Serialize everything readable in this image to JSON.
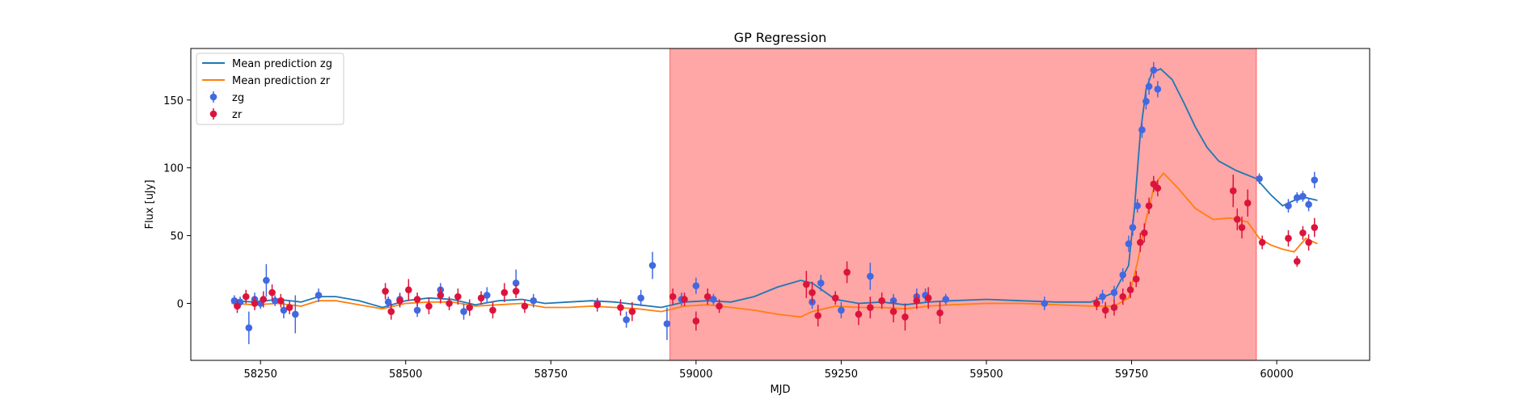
{
  "chart_data": {
    "type": "scatter",
    "title": "GP Regression",
    "xlabel": "MJD",
    "ylabel": "Flux [uJy]",
    "xlim": [
      58130,
      60160
    ],
    "ylim": [
      -42,
      188
    ],
    "xticks": [
      58250,
      58500,
      58750,
      59000,
      59250,
      59500,
      59750,
      60000
    ],
    "yticks": [
      0,
      50,
      100,
      150
    ],
    "grid": false,
    "legend_position": "top-left",
    "shaded_region": {
      "x0": 58955,
      "x1": 59965,
      "color": "#ff0000",
      "alpha": 0.35
    },
    "series": [
      {
        "name": "Mean prediction zg",
        "kind": "line",
        "color": "#1f77b4",
        "x": [
          58200,
          58240,
          58280,
          58320,
          58350,
          58380,
          58420,
          58460,
          58500,
          58540,
          58580,
          58620,
          58660,
          58700,
          58740,
          58780,
          58820,
          58860,
          58900,
          58940,
          58980,
          59020,
          59060,
          59100,
          59140,
          59180,
          59200,
          59240,
          59280,
          59320,
          59360,
          59400,
          59440,
          59500,
          59560,
          59620,
          59680,
          59720,
          59745,
          59755,
          59765,
          59775,
          59785,
          59800,
          59820,
          59840,
          59860,
          59880,
          59900,
          59930,
          59965,
          59990,
          60010,
          60030,
          60050,
          60070
        ],
        "y": [
          2,
          1,
          3,
          1,
          5,
          5,
          2,
          -3,
          2,
          4,
          3,
          -1,
          2,
          3,
          0,
          1,
          2,
          1,
          -1,
          -3,
          1,
          2,
          1,
          5,
          12,
          17,
          15,
          3,
          0,
          1,
          -1,
          1,
          2,
          3,
          2,
          1,
          1,
          8,
          28,
          70,
          125,
          158,
          170,
          173,
          165,
          148,
          130,
          115,
          105,
          98,
          92,
          80,
          72,
          76,
          78,
          76
        ]
      },
      {
        "name": "Mean prediction zr",
        "kind": "line",
        "color": "#ff7f0e",
        "x": [
          58200,
          58240,
          58280,
          58320,
          58350,
          58380,
          58420,
          58460,
          58500,
          58540,
          58580,
          58620,
          58660,
          58700,
          58740,
          58780,
          58820,
          58860,
          58900,
          58940,
          58980,
          59020,
          59060,
          59100,
          59140,
          59180,
          59200,
          59240,
          59280,
          59320,
          59360,
          59400,
          59440,
          59500,
          59560,
          59620,
          59680,
          59720,
          59745,
          59760,
          59775,
          59790,
          59805,
          59830,
          59860,
          59890,
          59920,
          59950,
          59970,
          59990,
          60010,
          60030,
          60050,
          60070
        ],
        "y": [
          0,
          -1,
          0,
          -2,
          2,
          2,
          -1,
          -4,
          0,
          1,
          1,
          -2,
          -1,
          0,
          -3,
          -3,
          -2,
          -3,
          -4,
          -6,
          -2,
          -1,
          -3,
          -5,
          -8,
          -10,
          -6,
          -2,
          -3,
          -3,
          -4,
          -2,
          -1,
          0,
          0,
          -1,
          -2,
          -2,
          4,
          30,
          62,
          88,
          96,
          85,
          70,
          62,
          63,
          60,
          48,
          43,
          40,
          38,
          48,
          44
        ]
      },
      {
        "name": "zg",
        "kind": "errorbar",
        "color": "#4169e1",
        "x": [
          58205,
          58215,
          58230,
          58240,
          58250,
          58260,
          58275,
          58290,
          58310,
          58350,
          58470,
          58490,
          58520,
          58560,
          58600,
          58640,
          58690,
          58720,
          58830,
          58880,
          58905,
          58925,
          58950,
          58975,
          59000,
          59030,
          59200,
          59215,
          59250,
          59300,
          59340,
          59380,
          59395,
          59430,
          59600,
          59700,
          59720,
          59735,
          59745,
          59752,
          59760,
          59768,
          59775,
          59780,
          59788,
          59795,
          59970,
          60020,
          60035,
          60045,
          60055,
          60065
        ],
        "y": [
          2,
          1,
          -18,
          3,
          0,
          17,
          2,
          -5,
          -8,
          6,
          1,
          3,
          -5,
          10,
          -6,
          6,
          15,
          2,
          0,
          -12,
          4,
          28,
          -15,
          3,
          13,
          3,
          1,
          15,
          -5,
          20,
          2,
          5,
          6,
          3,
          0,
          5,
          8,
          21,
          44,
          56,
          72,
          128,
          149,
          160,
          172,
          158,
          92,
          72,
          78,
          79,
          73,
          91
        ],
        "err": [
          4,
          4,
          12,
          5,
          4,
          12,
          4,
          6,
          14,
          5,
          4,
          5,
          5,
          5,
          6,
          6,
          10,
          5,
          4,
          6,
          6,
          10,
          12,
          5,
          6,
          4,
          5,
          6,
          6,
          10,
          5,
          6,
          5,
          4,
          5,
          5,
          5,
          5,
          6,
          6,
          5,
          6,
          6,
          6,
          6,
          6,
          4,
          5,
          4,
          4,
          5,
          6
        ]
      },
      {
        "name": "zr",
        "kind": "errorbar",
        "color": "#dc143c",
        "x": [
          58210,
          58225,
          58240,
          58255,
          58270,
          58285,
          58300,
          58465,
          58475,
          58490,
          58505,
          58520,
          58540,
          58560,
          58575,
          58590,
          58610,
          58630,
          58650,
          58670,
          58690,
          58705,
          58830,
          58870,
          58890,
          58960,
          58980,
          59000,
          59020,
          59040,
          59190,
          59200,
          59210,
          59240,
          59260,
          59280,
          59300,
          59320,
          59340,
          59360,
          59380,
          59400,
          59420,
          59690,
          59705,
          59720,
          59735,
          59748,
          59758,
          59765,
          59772,
          59780,
          59788,
          59795,
          59925,
          59932,
          59940,
          59950,
          59975,
          60020,
          60035,
          60045,
          60055,
          60065
        ],
        "y": [
          -2,
          5,
          0,
          3,
          8,
          2,
          -3,
          9,
          -6,
          2,
          10,
          3,
          -2,
          6,
          0,
          5,
          -3,
          4,
          -5,
          8,
          9,
          -2,
          -1,
          -3,
          -6,
          5,
          3,
          -13,
          5,
          -2,
          14,
          8,
          -9,
          4,
          23,
          -8,
          -3,
          2,
          -6,
          -10,
          2,
          4,
          -7,
          0,
          -5,
          -3,
          5,
          10,
          18,
          45,
          52,
          72,
          88,
          85,
          83,
          62,
          56,
          74,
          45,
          48,
          31,
          52,
          45,
          56
        ],
        "err": [
          5,
          5,
          5,
          6,
          6,
          5,
          5,
          6,
          6,
          5,
          8,
          5,
          6,
          6,
          5,
          6,
          6,
          5,
          6,
          7,
          5,
          5,
          5,
          6,
          7,
          6,
          5,
          7,
          6,
          5,
          10,
          8,
          8,
          5,
          8,
          8,
          8,
          6,
          8,
          10,
          6,
          8,
          8,
          5,
          6,
          6,
          6,
          6,
          6,
          7,
          7,
          6,
          6,
          6,
          12,
          8,
          8,
          10,
          5,
          6,
          4,
          5,
          6,
          7
        ]
      }
    ]
  }
}
